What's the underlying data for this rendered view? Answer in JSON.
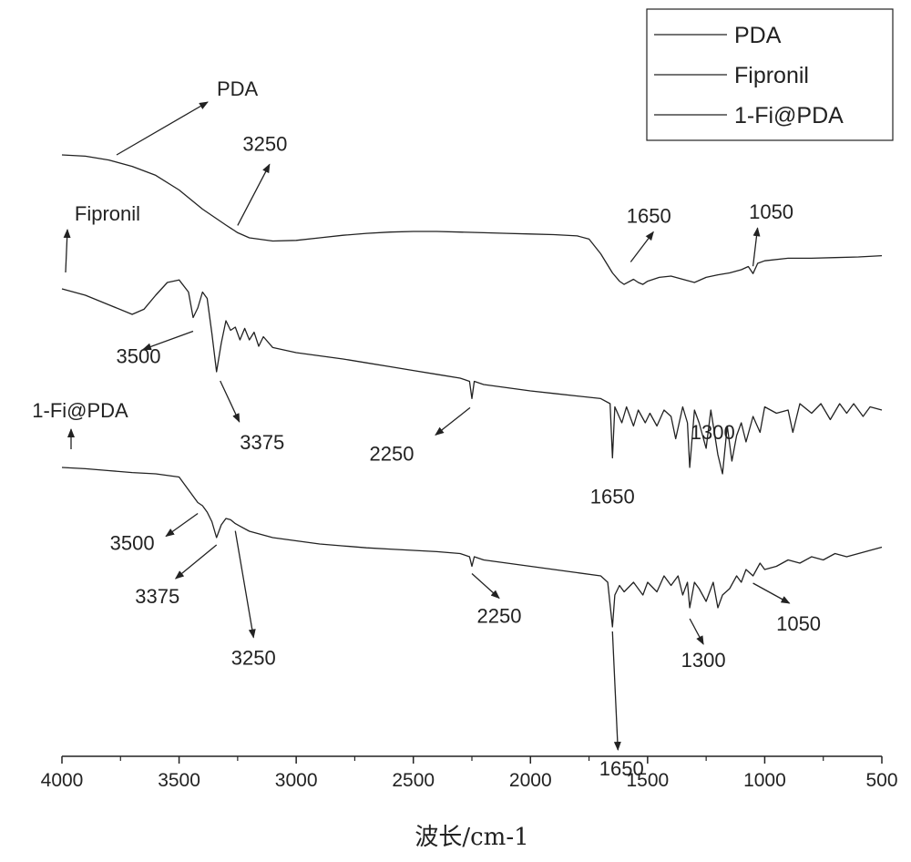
{
  "chart_data": {
    "type": "line",
    "title": "",
    "xlabel": "波长/cm-1",
    "ylabel": "",
    "xlim": [
      4000,
      500
    ],
    "x_reversed": true,
    "xticks": [
      4000,
      3500,
      3000,
      2500,
      2000,
      1500,
      1000,
      500
    ],
    "yticks_shown": false,
    "grid": false,
    "legend_position": "top-right",
    "legend": [
      "PDA",
      "Fipronil",
      "1-Fi@PDA"
    ],
    "series": [
      {
        "name": "PDA",
        "x": [
          4000,
          3900,
          3800,
          3700,
          3600,
          3500,
          3400,
          3300,
          3250,
          3200,
          3100,
          3000,
          2900,
          2800,
          2700,
          2600,
          2500,
          2400,
          2300,
          2200,
          2100,
          2000,
          1900,
          1800,
          1750,
          1700,
          1650,
          1620,
          1600,
          1560,
          1540,
          1520,
          1500,
          1450,
          1400,
          1350,
          1300,
          1250,
          1200,
          1150,
          1100,
          1070,
          1050,
          1030,
          1000,
          900,
          800,
          700,
          600,
          500
        ],
        "y": [
          0.0,
          -0.02,
          -0.08,
          -0.18,
          -0.32,
          -0.55,
          -0.85,
          -1.1,
          -1.22,
          -1.3,
          -1.35,
          -1.34,
          -1.3,
          -1.26,
          -1.23,
          -1.21,
          -1.2,
          -1.2,
          -1.21,
          -1.22,
          -1.23,
          -1.24,
          -1.25,
          -1.27,
          -1.32,
          -1.55,
          -1.85,
          -1.98,
          -2.03,
          -1.95,
          -2.0,
          -2.03,
          -1.98,
          -1.92,
          -1.9,
          -1.95,
          -2.0,
          -1.92,
          -1.88,
          -1.85,
          -1.8,
          -1.75,
          -1.86,
          -1.7,
          -1.66,
          -1.62,
          -1.62,
          -1.61,
          -1.6,
          -1.58
        ]
      },
      {
        "name": "Fipronil",
        "x": [
          4000,
          3900,
          3800,
          3700,
          3650,
          3600,
          3550,
          3500,
          3460,
          3440,
          3420,
          3400,
          3380,
          3360,
          3340,
          3320,
          3300,
          3280,
          3260,
          3240,
          3220,
          3200,
          3180,
          3160,
          3140,
          3100,
          3000,
          2900,
          2800,
          2700,
          2600,
          2500,
          2400,
          2300,
          2260,
          2250,
          2240,
          2200,
          2100,
          2000,
          1900,
          1800,
          1700,
          1660,
          1650,
          1640,
          1610,
          1590,
          1560,
          1540,
          1510,
          1490,
          1460,
          1430,
          1400,
          1380,
          1350,
          1330,
          1320,
          1300,
          1280,
          1250,
          1230,
          1200,
          1180,
          1160,
          1140,
          1120,
          1100,
          1080,
          1050,
          1020,
          1000,
          950,
          900,
          880,
          850,
          800,
          760,
          720,
          680,
          650,
          620,
          580,
          550,
          500
        ],
        "y": [
          -2.1,
          -2.2,
          -2.35,
          -2.5,
          -2.42,
          -2.2,
          -2.0,
          -1.96,
          -2.15,
          -2.55,
          -2.4,
          -2.15,
          -2.25,
          -2.8,
          -3.4,
          -2.95,
          -2.6,
          -2.75,
          -2.7,
          -2.9,
          -2.72,
          -2.9,
          -2.78,
          -3.0,
          -2.85,
          -3.02,
          -3.1,
          -3.15,
          -3.2,
          -3.26,
          -3.32,
          -3.38,
          -3.44,
          -3.5,
          -3.55,
          -3.82,
          -3.55,
          -3.6,
          -3.65,
          -3.7,
          -3.74,
          -3.78,
          -3.82,
          -3.9,
          -4.75,
          -3.95,
          -4.2,
          -3.95,
          -4.25,
          -4.0,
          -4.2,
          -4.05,
          -4.25,
          -4.0,
          -4.1,
          -4.45,
          -3.95,
          -4.2,
          -4.9,
          -4.0,
          -4.2,
          -4.6,
          -4.0,
          -4.7,
          -5.0,
          -4.25,
          -4.8,
          -4.4,
          -4.2,
          -4.5,
          -4.1,
          -4.35,
          -3.95,
          -4.05,
          -4.0,
          -4.35,
          -3.9,
          -4.05,
          -3.9,
          -4.15,
          -3.9,
          -4.05,
          -3.9,
          -4.1,
          -3.95,
          -4.0
        ]
      },
      {
        "name": "1-Fi@PDA",
        "x": [
          4000,
          3900,
          3800,
          3700,
          3600,
          3500,
          3450,
          3420,
          3400,
          3380,
          3360,
          3340,
          3320,
          3300,
          3280,
          3260,
          3240,
          3200,
          3100,
          3000,
          2900,
          2800,
          2700,
          2600,
          2500,
          2400,
          2300,
          2260,
          2250,
          2240,
          2200,
          2100,
          2000,
          1900,
          1800,
          1700,
          1670,
          1650,
          1640,
          1620,
          1600,
          1560,
          1520,
          1500,
          1460,
          1430,
          1400,
          1370,
          1350,
          1330,
          1320,
          1300,
          1280,
          1250,
          1220,
          1200,
          1180,
          1150,
          1120,
          1100,
          1080,
          1050,
          1020,
          1000,
          950,
          900,
          850,
          800,
          750,
          700,
          650,
          600,
          550,
          500
        ],
        "y": [
          -4.9,
          -4.92,
          -4.95,
          -4.98,
          -5.0,
          -5.05,
          -5.3,
          -5.45,
          -5.5,
          -5.6,
          -5.75,
          -6.0,
          -5.8,
          -5.7,
          -5.72,
          -5.78,
          -5.82,
          -5.9,
          -6.0,
          -6.05,
          -6.1,
          -6.13,
          -6.16,
          -6.18,
          -6.2,
          -6.22,
          -6.25,
          -6.3,
          -6.45,
          -6.3,
          -6.35,
          -6.4,
          -6.45,
          -6.5,
          -6.55,
          -6.6,
          -6.7,
          -7.4,
          -6.9,
          -6.75,
          -6.85,
          -6.7,
          -6.9,
          -6.7,
          -6.85,
          -6.6,
          -6.75,
          -6.6,
          -6.9,
          -6.7,
          -7.1,
          -6.7,
          -6.8,
          -7.0,
          -6.7,
          -7.1,
          -6.9,
          -6.8,
          -6.6,
          -6.7,
          -6.5,
          -6.6,
          -6.4,
          -6.5,
          -6.45,
          -6.35,
          -6.4,
          -6.3,
          -6.35,
          -6.25,
          -6.3,
          -6.25,
          -6.2,
          -6.15
        ]
      }
    ],
    "annotations": [
      {
        "text": "PDA",
        "x": 4000,
        "series": "PDA"
      },
      {
        "text": "3250",
        "x": 3250,
        "series": "PDA"
      },
      {
        "text": "1650",
        "x": 1650,
        "series": "PDA"
      },
      {
        "text": "1050",
        "x": 1050,
        "series": "PDA"
      },
      {
        "text": "Fipronil",
        "x": 4000,
        "series": "Fipronil"
      },
      {
        "text": "3500",
        "x": 3440,
        "series": "Fipronil"
      },
      {
        "text": "3375",
        "x": 3340,
        "series": "Fipronil"
      },
      {
        "text": "2250",
        "x": 2250,
        "series": "Fipronil"
      },
      {
        "text": "1650",
        "x": 1650,
        "series": "Fipronil"
      },
      {
        "text": "1300",
        "x": 1300,
        "series": "Fipronil"
      },
      {
        "text": "1-Fi@PDA",
        "x": 4000,
        "series": "1-Fi@PDA"
      },
      {
        "text": "3500",
        "x": 3420,
        "series": "1-Fi@PDA"
      },
      {
        "text": "3375",
        "x": 3340,
        "series": "1-Fi@PDA"
      },
      {
        "text": "3250",
        "x": 3260,
        "series": "1-Fi@PDA"
      },
      {
        "text": "2250",
        "x": 2250,
        "series": "1-Fi@PDA"
      },
      {
        "text": "1650",
        "x": 1650,
        "series": "1-Fi@PDA"
      },
      {
        "text": "1300",
        "x": 1320,
        "series": "1-Fi@PDA"
      },
      {
        "text": "1050",
        "x": 1050,
        "series": "1-Fi@PDA"
      }
    ]
  }
}
